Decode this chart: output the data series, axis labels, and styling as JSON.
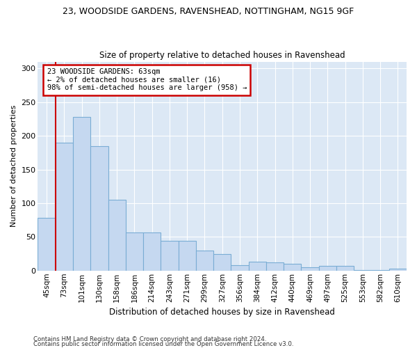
{
  "title": "23, WOODSIDE GARDENS, RAVENSHEAD, NOTTINGHAM, NG15 9GF",
  "subtitle": "Size of property relative to detached houses in Ravenshead",
  "xlabel": "Distribution of detached houses by size in Ravenshead",
  "ylabel": "Number of detached properties",
  "categories": [
    "45sqm",
    "73sqm",
    "101sqm",
    "130sqm",
    "158sqm",
    "186sqm",
    "214sqm",
    "243sqm",
    "271sqm",
    "299sqm",
    "327sqm",
    "356sqm",
    "384sqm",
    "412sqm",
    "440sqm",
    "469sqm",
    "497sqm",
    "525sqm",
    "553sqm",
    "582sqm",
    "610sqm"
  ],
  "values": [
    78,
    190,
    228,
    185,
    105,
    57,
    57,
    44,
    44,
    30,
    25,
    8,
    13,
    12,
    10,
    5,
    7,
    7,
    1,
    1,
    3
  ],
  "bar_color": "#c5d8f0",
  "bar_edge_color": "#7aadd4",
  "annotation_text_line1": "23 WOODSIDE GARDENS: 63sqm",
  "annotation_text_line2": "← 2% of detached houses are smaller (16)",
  "annotation_text_line3": "98% of semi-detached houses are larger (958) →",
  "annotation_box_facecolor": "#ffffff",
  "annotation_box_edgecolor": "#cc0000",
  "red_line_color": "#cc0000",
  "footer_line1": "Contains HM Land Registry data © Crown copyright and database right 2024.",
  "footer_line2": "Contains public sector information licensed under the Open Government Licence v3.0.",
  "bg_color": "#dce8f5",
  "plot_bg_color": "#dce8f5",
  "ylim": [
    0,
    310
  ],
  "yticks": [
    0,
    50,
    100,
    150,
    200,
    250,
    300
  ]
}
